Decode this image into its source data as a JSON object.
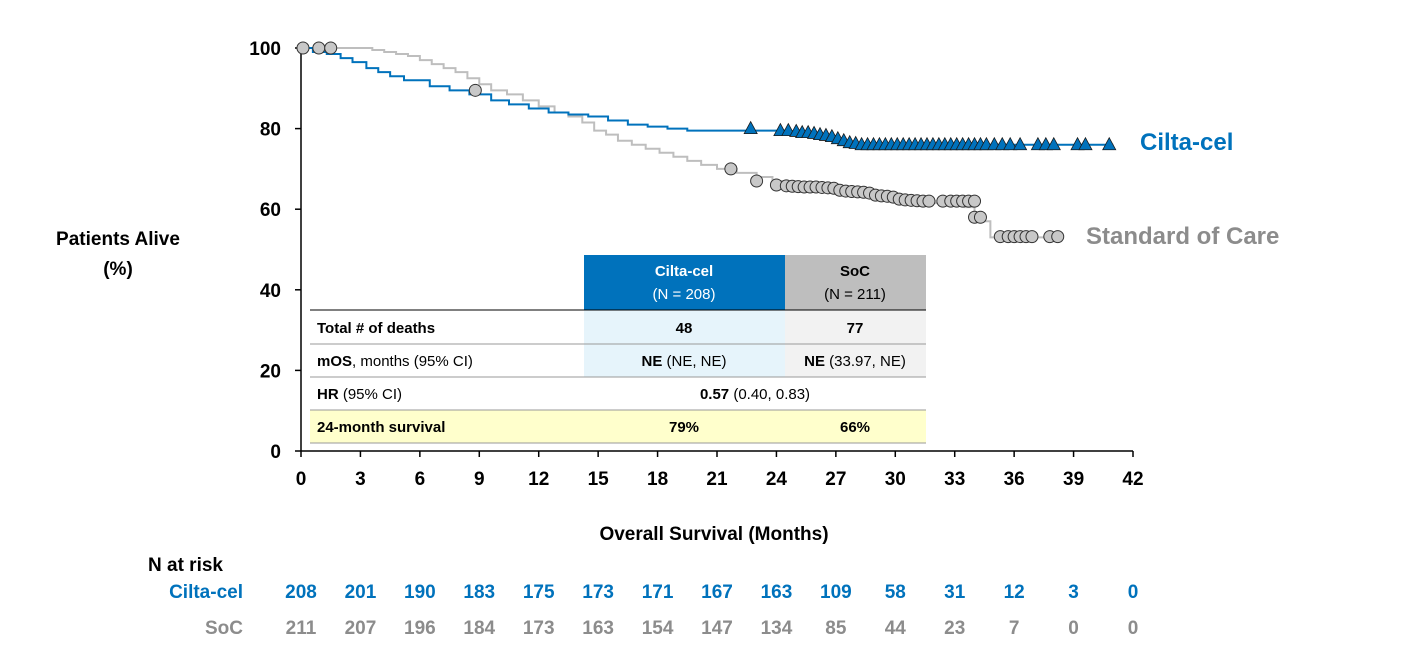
{
  "chart_data": {
    "type": "line",
    "title": "",
    "xlabel": "Overall Survival (Months)",
    "ylabel_line1": "Patients Alive",
    "ylabel_line2": "(%)",
    "xlim": [
      0,
      42
    ],
    "ylim": [
      0,
      100
    ],
    "xticks": [
      "0",
      "3",
      "6",
      "9",
      "12",
      "15",
      "18",
      "21",
      "24",
      "27",
      "30",
      "33",
      "36",
      "39",
      "42"
    ],
    "yticks": [
      "0",
      "20",
      "40",
      "60",
      "80",
      "100"
    ],
    "colors": {
      "cilta": "#0072BC",
      "soc": "#BEBEBE",
      "soc_text": "#8C8C8C",
      "soc_marker": "#C8C8C8"
    },
    "series": [
      {
        "name": "Cilta-cel",
        "color": "#0072BC",
        "marker": "triangle",
        "steps": [
          [
            0,
            100
          ],
          [
            0.6,
            99
          ],
          [
            1.3,
            98.5
          ],
          [
            2.0,
            97.5
          ],
          [
            2.6,
            96.5
          ],
          [
            3.3,
            95
          ],
          [
            3.9,
            94
          ],
          [
            4.5,
            93
          ],
          [
            5.2,
            92
          ],
          [
            6.5,
            90.5
          ],
          [
            7.5,
            89.5
          ],
          [
            8.5,
            88.5
          ],
          [
            9.6,
            87
          ],
          [
            10.5,
            86
          ],
          [
            11.5,
            85
          ],
          [
            12.5,
            84
          ],
          [
            13.5,
            83.5
          ],
          [
            14.5,
            83
          ],
          [
            15.5,
            82
          ],
          [
            16.5,
            81
          ],
          [
            17.5,
            80.5
          ],
          [
            18.5,
            80
          ],
          [
            19.5,
            79.5
          ],
          [
            21.0,
            79.5
          ],
          [
            23.5,
            79.5
          ],
          [
            24.5,
            79
          ],
          [
            25.5,
            78.5
          ],
          [
            26.2,
            78
          ],
          [
            26.8,
            77
          ],
          [
            27.3,
            76.5
          ],
          [
            28.0,
            76
          ],
          [
            41.0,
            76
          ]
        ],
        "censor": [
          [
            22.7,
            80
          ],
          [
            24.2,
            79.5
          ],
          [
            24.6,
            79.5
          ],
          [
            25.0,
            79.3
          ],
          [
            25.3,
            79
          ],
          [
            25.6,
            79
          ],
          [
            25.9,
            78.8
          ],
          [
            26.2,
            78.5
          ],
          [
            26.5,
            78.3
          ],
          [
            26.8,
            78
          ],
          [
            27.1,
            77.5
          ],
          [
            27.4,
            77
          ],
          [
            27.7,
            76.5
          ],
          [
            28.0,
            76.3
          ],
          [
            28.3,
            76
          ],
          [
            28.6,
            76
          ],
          [
            28.9,
            76
          ],
          [
            29.2,
            76
          ],
          [
            29.5,
            76
          ],
          [
            29.8,
            76
          ],
          [
            30.1,
            76
          ],
          [
            30.4,
            76
          ],
          [
            30.7,
            76
          ],
          [
            31.0,
            76
          ],
          [
            31.3,
            76
          ],
          [
            31.6,
            76
          ],
          [
            31.9,
            76
          ],
          [
            32.2,
            76
          ],
          [
            32.5,
            76
          ],
          [
            32.8,
            76
          ],
          [
            33.1,
            76
          ],
          [
            33.4,
            76
          ],
          [
            33.7,
            76
          ],
          [
            34.0,
            76
          ],
          [
            34.3,
            76
          ],
          [
            34.6,
            76
          ],
          [
            35.0,
            76
          ],
          [
            35.4,
            76
          ],
          [
            35.8,
            76
          ],
          [
            36.3,
            76
          ],
          [
            37.2,
            76
          ],
          [
            37.6,
            76
          ],
          [
            38.0,
            76
          ],
          [
            39.2,
            76
          ],
          [
            39.6,
            76
          ],
          [
            40.8,
            76
          ]
        ]
      },
      {
        "name": "Standard of Care",
        "color": "#BEBEBE",
        "marker": "circle",
        "steps": [
          [
            0,
            100
          ],
          [
            3,
            100
          ],
          [
            3.6,
            99.5
          ],
          [
            4.2,
            99
          ],
          [
            4.8,
            98.5
          ],
          [
            5.4,
            98
          ],
          [
            6.0,
            97
          ],
          [
            6.6,
            96
          ],
          [
            7.2,
            95
          ],
          [
            7.8,
            94
          ],
          [
            8.4,
            92.5
          ],
          [
            9.0,
            91
          ],
          [
            9.6,
            89.5
          ],
          [
            10.4,
            88.5
          ],
          [
            11.2,
            87
          ],
          [
            12.0,
            85.5
          ],
          [
            12.8,
            84
          ],
          [
            13.5,
            83
          ],
          [
            14.2,
            81.5
          ],
          [
            14.8,
            79.5
          ],
          [
            15.4,
            78.5
          ],
          [
            16.0,
            77
          ],
          [
            16.7,
            76
          ],
          [
            17.4,
            75
          ],
          [
            18.1,
            74
          ],
          [
            18.8,
            73
          ],
          [
            19.5,
            72
          ],
          [
            20.2,
            71
          ],
          [
            21.0,
            70
          ],
          [
            22.0,
            69
          ],
          [
            23.0,
            68
          ],
          [
            23.8,
            67
          ],
          [
            24.5,
            66
          ],
          [
            25.5,
            65.5
          ],
          [
            26.5,
            65
          ],
          [
            27.5,
            64.5
          ],
          [
            28.5,
            64
          ],
          [
            29.5,
            63
          ],
          [
            30.5,
            62
          ],
          [
            32.0,
            61.5
          ],
          [
            33.5,
            60.5
          ],
          [
            34.0,
            58
          ],
          [
            34.4,
            57
          ],
          [
            34.8,
            53
          ],
          [
            38.0,
            53
          ]
        ],
        "censor": [
          [
            0.1,
            100
          ],
          [
            0.9,
            100
          ],
          [
            1.5,
            100
          ],
          [
            8.8,
            89.5
          ],
          [
            21.7,
            70
          ],
          [
            23.0,
            67
          ],
          [
            24.0,
            66
          ],
          [
            24.5,
            65.8
          ],
          [
            24.8,
            65.7
          ],
          [
            25.1,
            65.6
          ],
          [
            25.4,
            65.5
          ],
          [
            25.7,
            65.5
          ],
          [
            26.0,
            65.5
          ],
          [
            26.3,
            65.4
          ],
          [
            26.6,
            65.3
          ],
          [
            26.9,
            65.2
          ],
          [
            27.2,
            64.7
          ],
          [
            27.5,
            64.5
          ],
          [
            27.8,
            64.4
          ],
          [
            28.1,
            64.3
          ],
          [
            28.4,
            64.2
          ],
          [
            28.7,
            64
          ],
          [
            29.0,
            63.5
          ],
          [
            29.3,
            63.3
          ],
          [
            29.6,
            63.2
          ],
          [
            29.9,
            63
          ],
          [
            30.2,
            62.5
          ],
          [
            30.5,
            62.3
          ],
          [
            30.8,
            62.2
          ],
          [
            31.1,
            62.1
          ],
          [
            31.4,
            62
          ],
          [
            31.7,
            62
          ],
          [
            32.4,
            62
          ],
          [
            32.8,
            62
          ],
          [
            33.1,
            62
          ],
          [
            33.4,
            62
          ],
          [
            33.7,
            62
          ],
          [
            34.0,
            62
          ],
          [
            34.0,
            58
          ],
          [
            34.3,
            58
          ],
          [
            35.3,
            53.2
          ],
          [
            35.7,
            53.2
          ],
          [
            36.0,
            53.2
          ],
          [
            36.3,
            53.2
          ],
          [
            36.6,
            53.2
          ],
          [
            36.9,
            53.2
          ],
          [
            37.8,
            53.2
          ],
          [
            38.2,
            53.2
          ]
        ]
      }
    ],
    "series_labels": {
      "cilta": "Cilta-cel",
      "soc": "Standard of Care"
    },
    "table": {
      "col1_head": "Cilta-cel",
      "col1_sub": "(N = 208)",
      "col2_head": "SoC",
      "col2_sub": "(N = 211)",
      "rows": [
        {
          "label_bold": "Total # of deaths",
          "label_rest": "",
          "c1_bold": "48",
          "c1_rest": "",
          "c2_bold": "77",
          "c2_rest": ""
        },
        {
          "label_bold": "mOS",
          "label_rest": ", months (95% CI)",
          "c1_bold": "NE",
          "c1_rest": " (NE, NE)",
          "c2_bold": "NE",
          "c2_rest": " (33.97, NE)"
        },
        {
          "label_bold": "HR",
          "label_rest": " (95% CI)",
          "span_bold": "0.57",
          "span_rest": " (0.40, 0.83)"
        },
        {
          "label_bold": "24-month survival",
          "label_rest": "",
          "c1_bold": "79%",
          "c1_rest": "",
          "c2_bold": "66%",
          "c2_rest": ""
        }
      ],
      "colors": {
        "head1": "#0072BC",
        "head2": "#BEBEBE",
        "col1_bg": "#E6F4FB",
        "col2_bg": "#F2F2F2",
        "yellow": "#FFFFCC"
      }
    },
    "risk": {
      "title": "N at risk",
      "rows": [
        {
          "label": "Cilta-cel",
          "values": [
            "208",
            "201",
            "190",
            "183",
            "175",
            "173",
            "171",
            "167",
            "163",
            "109",
            "58",
            "31",
            "12",
            "3",
            "0"
          ]
        },
        {
          "label": "SoC",
          "values": [
            "211",
            "207",
            "196",
            "184",
            "173",
            "163",
            "154",
            "147",
            "134",
            "85",
            "44",
            "23",
            "7",
            "0",
            "0"
          ]
        }
      ]
    }
  }
}
